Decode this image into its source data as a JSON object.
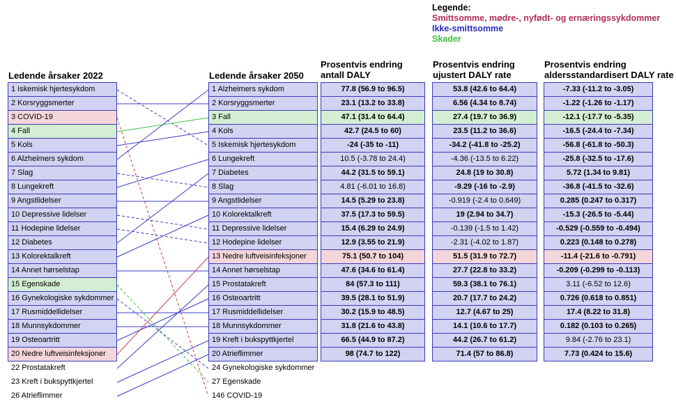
{
  "legend": {
    "title": "Legende:",
    "items": [
      {
        "label": "Smittsomme, mødre-, nyfødt- og ernæringssykdommer",
        "color": "#b03055"
      },
      {
        "label": "Ikke-smittsomme",
        "color": "#2c2cc0"
      },
      {
        "label": "Skader",
        "color": "#3fbf3f"
      }
    ]
  },
  "headers": {
    "left": "Ledende årsaker 2022",
    "mid": "Ledende årsaker 2050",
    "c1": [
      "Prosentvis endring",
      "antall DALY"
    ],
    "c2": [
      "Prosentvis endring",
      "ujustert DALY rate"
    ],
    "c3": [
      "Prosentvis endring",
      "aldersstandardisert DALY rate"
    ]
  },
  "colors": {
    "box_blue": "#d2d2f2",
    "box_red": "#f4d6da",
    "box_green": "#d3eed3",
    "border": "#3a3ab8",
    "line_blue": "#3b3bc8",
    "line_red": "#d04040",
    "line_green": "#3fbf3f"
  },
  "left_causes": [
    {
      "label": "1 Iskemisk hjertesykdom",
      "cat": "blue"
    },
    {
      "label": "2 Korsryggsmerter",
      "cat": "blue"
    },
    {
      "label": "3 COVID-19",
      "cat": "red"
    },
    {
      "label": "4 Fall",
      "cat": "green"
    },
    {
      "label": "5 Kols",
      "cat": "blue"
    },
    {
      "label": "6 Alzheimers sykdom",
      "cat": "blue"
    },
    {
      "label": "7 Slag",
      "cat": "blue"
    },
    {
      "label": "8 Lungekreft",
      "cat": "blue"
    },
    {
      "label": "9 Angstlidelser",
      "cat": "blue"
    },
    {
      "label": "10 Depressive lidelser",
      "cat": "blue"
    },
    {
      "label": "11 Hodepine lidelser",
      "cat": "blue"
    },
    {
      "label": "12 Diabetes",
      "cat": "blue"
    },
    {
      "label": "13 Kolorektalkreft",
      "cat": "blue"
    },
    {
      "label": "14 Annet hørselstap",
      "cat": "blue"
    },
    {
      "label": "15 Egenskade",
      "cat": "green"
    },
    {
      "label": "16 Gynekologiske sykdommer",
      "cat": "blue"
    },
    {
      "label": "17 Rusmiddellidelser",
      "cat": "blue"
    },
    {
      "label": "18 Munnsykdommer",
      "cat": "blue"
    },
    {
      "label": "19 Osteoartritt",
      "cat": "blue"
    },
    {
      "label": "20 Nedre luftveisinfeksjoner",
      "cat": "red"
    },
    {
      "label": "22 Prostatakreft",
      "cat": "none"
    },
    {
      "label": "23 Kreft i bukspyttkjertel",
      "cat": "none"
    },
    {
      "label": "26 Atrieflimmer",
      "cat": "none"
    }
  ],
  "right_causes": [
    {
      "label": "1 Alzheimers sykdom",
      "cat": "blue"
    },
    {
      "label": "2 Korsryggsmerter",
      "cat": "blue"
    },
    {
      "label": "3 Fall",
      "cat": "green"
    },
    {
      "label": "4 Kols",
      "cat": "blue"
    },
    {
      "label": "5 Iskemisk hjertesykdom",
      "cat": "blue"
    },
    {
      "label": "6 Lungekreft",
      "cat": "blue"
    },
    {
      "label": "7 Diabetes",
      "cat": "blue"
    },
    {
      "label": "8 Slag",
      "cat": "blue"
    },
    {
      "label": "9 Angstlidelser",
      "cat": "blue"
    },
    {
      "label": "10 Kolorektalkreft",
      "cat": "blue"
    },
    {
      "label": "11 Depressive lidelser",
      "cat": "blue"
    },
    {
      "label": "12 Hodepine lidelser",
      "cat": "blue"
    },
    {
      "label": "13 Nedre luftveisinfeksjoner",
      "cat": "red"
    },
    {
      "label": "14 Annet hørselstap",
      "cat": "blue"
    },
    {
      "label": "15 Prostatakreft",
      "cat": "blue"
    },
    {
      "label": "16 Osteoartritt",
      "cat": "blue"
    },
    {
      "label": "17 Rusmiddellidelser",
      "cat": "blue"
    },
    {
      "label": "18 Munnsykdommer",
      "cat": "blue"
    },
    {
      "label": "19 Kreft i bukspyttkjertel",
      "cat": "blue"
    },
    {
      "label": "20 Atrieflimmer",
      "cat": "blue"
    },
    {
      "label": "24 Gynekologiske sykdommer",
      "cat": "none"
    },
    {
      "label": "27 Egenskade",
      "cat": "none"
    },
    {
      "label": "146 COVID-19",
      "cat": "none"
    }
  ],
  "table_c1": [
    {
      "v": "77.8 (56.9 to 96.5)",
      "b": true
    },
    {
      "v": "23.1 (13.2 to 33.8)",
      "b": true
    },
    {
      "v": "47.1 (31.4 to 64.4)",
      "b": true
    },
    {
      "v": "42.7 (24.5 to 60)",
      "b": true
    },
    {
      "v": "-24 (-35 to -11)",
      "b": true
    },
    {
      "v": "10.5 (-3.78 to 24.4)",
      "b": false
    },
    {
      "v": "44.2 (31.5 to 59.1)",
      "b": true
    },
    {
      "v": "4.81 (-6.01 to 16.8)",
      "b": false
    },
    {
      "v": "14.5 (5.29 to 23.8)",
      "b": true
    },
    {
      "v": "37.5 (17.3 to 59.5)",
      "b": true
    },
    {
      "v": "15.4 (6.29 to 24.9)",
      "b": true
    },
    {
      "v": "12.9 (3.55 to 21.9)",
      "b": true
    },
    {
      "v": "75.1 (50.7 to 104)",
      "b": true
    },
    {
      "v": "47.6 (34.6 to 61.4)",
      "b": true
    },
    {
      "v": "84 (57.3 to 111)",
      "b": true
    },
    {
      "v": "39.5 (28.1 to 51.9)",
      "b": true
    },
    {
      "v": "30.2 (15.9 to 48.5)",
      "b": true
    },
    {
      "v": "31.8 (21.6 to 43.8)",
      "b": true
    },
    {
      "v": "66.5 (44.9 to 87.2)",
      "b": true
    },
    {
      "v": "98 (74.7 to 122)",
      "b": true
    }
  ],
  "table_c2": [
    {
      "v": "53.8 (42.6 to 64.4)",
      "b": true
    },
    {
      "v": "6.56 (4.34 to 8.74)",
      "b": true
    },
    {
      "v": "27.4 (19.7 to 36.9)",
      "b": true
    },
    {
      "v": "23.5 (11.2 to 36.6)",
      "b": true
    },
    {
      "v": "-34.2 (-41.8 to -25.2)",
      "b": true
    },
    {
      "v": "-4.36 (-13.5 to 6.22)",
      "b": false
    },
    {
      "v": "24.8 (19 to 30.8)",
      "b": true
    },
    {
      "v": "-9.29 (-16 to -2.9)",
      "b": true
    },
    {
      "v": "-0.919 (-2.4 to 0.649)",
      "b": false
    },
    {
      "v": "19 (2.94 to 34.7)",
      "b": true
    },
    {
      "v": "-0.139 (-1.5 to 1.42)",
      "b": false
    },
    {
      "v": "-2.31 (-4.02 to 1.87)",
      "b": false
    },
    {
      "v": "51.5 (31.9 to 72.7)",
      "b": true
    },
    {
      "v": "27.7 (22.8 to 33.2)",
      "b": true
    },
    {
      "v": "59.3 (38.1 to 76.1)",
      "b": true
    },
    {
      "v": "20.7 (17.7 to 24.2)",
      "b": true
    },
    {
      "v": "12.7 (4.67 to 25)",
      "b": true
    },
    {
      "v": "14.1 (10.6 to 17.7)",
      "b": true
    },
    {
      "v": "44.2 (26.7 to 61.2)",
      "b": true
    },
    {
      "v": "71.4 (57 to 86.8)",
      "b": true
    }
  ],
  "table_c3": [
    {
      "v": "-7.33 (-11.2 to -3.05)",
      "b": true
    },
    {
      "v": "-1.22 (-1.26 to -1.17)",
      "b": true
    },
    {
      "v": "-12.1 (-17.7 to -5.35)",
      "b": true
    },
    {
      "v": "-16.5 (-24.4 to -7.34)",
      "b": true
    },
    {
      "v": "-56.8 (-61.8 to -50.3)",
      "b": true
    },
    {
      "v": "-25.8 (-32.5 to -17.6)",
      "b": true
    },
    {
      "v": "5.72 (1.34 to 9.81)",
      "b": true
    },
    {
      "v": "-36.8 (-41.5 to -32.6)",
      "b": true
    },
    {
      "v": "0.285 (0.247 to 0.317)",
      "b": true
    },
    {
      "v": "-15.3 (-26.5 to -5.44)",
      "b": true
    },
    {
      "v": "-0.529 (-0.559 to -0.494)",
      "b": true
    },
    {
      "v": "0.223 (0.148 to 0.278)",
      "b": true
    },
    {
      "v": "-11.4 (-21.6 to -0.791)",
      "b": true
    },
    {
      "v": "-0.209 (-0.299 to -0.113)",
      "b": true
    },
    {
      "v": "3.11 (-6.52 to 12.6)",
      "b": false
    },
    {
      "v": "0.726 (0.618 to 0.851)",
      "b": true
    },
    {
      "v": "17.4 (8.22 to 31.8)",
      "b": true
    },
    {
      "v": "0.182 (0.103 to 0.265)",
      "b": true
    },
    {
      "v": "9.84 (-2.76 to 23.1)",
      "b": false
    },
    {
      "v": "7.73 (0.424 to 15.6)",
      "b": true
    }
  ],
  "connections": [
    {
      "from": 1,
      "to": 5,
      "style": "dashed",
      "color": "blue"
    },
    {
      "from": 2,
      "to": 2,
      "style": "solid",
      "color": "blue"
    },
    {
      "from": 3,
      "to": 23,
      "style": "dashed",
      "color": "red"
    },
    {
      "from": 4,
      "to": 3,
      "style": "solid",
      "color": "green"
    },
    {
      "from": 5,
      "to": 4,
      "style": "solid",
      "color": "blue"
    },
    {
      "from": 6,
      "to": 1,
      "style": "solid",
      "color": "blue"
    },
    {
      "from": 7,
      "to": 8,
      "style": "dashed",
      "color": "blue"
    },
    {
      "from": 8,
      "to": 6,
      "style": "solid",
      "color": "blue"
    },
    {
      "from": 9,
      "to": 9,
      "style": "solid",
      "color": "blue"
    },
    {
      "from": 10,
      "to": 11,
      "style": "dashed",
      "color": "blue"
    },
    {
      "from": 11,
      "to": 12,
      "style": "dashed",
      "color": "blue"
    },
    {
      "from": 12,
      "to": 7,
      "style": "solid",
      "color": "blue"
    },
    {
      "from": 13,
      "to": 10,
      "style": "solid",
      "color": "blue"
    },
    {
      "from": 14,
      "to": 14,
      "style": "solid",
      "color": "blue"
    },
    {
      "from": 15,
      "to": 22,
      "style": "dashed",
      "color": "green"
    },
    {
      "from": 16,
      "to": 21,
      "style": "dashed",
      "color": "blue"
    },
    {
      "from": 17,
      "to": 17,
      "style": "solid",
      "color": "blue"
    },
    {
      "from": 18,
      "to": 18,
      "style": "solid",
      "color": "blue"
    },
    {
      "from": 19,
      "to": 16,
      "style": "solid",
      "color": "blue"
    },
    {
      "from": 20,
      "to": 13,
      "style": "solid",
      "color": "red"
    },
    {
      "from": 21,
      "to": 15,
      "style": "solid",
      "color": "blue"
    },
    {
      "from": 22,
      "to": 19,
      "style": "solid",
      "color": "blue"
    },
    {
      "from": 23,
      "to": 20,
      "style": "solid",
      "color": "blue"
    }
  ]
}
